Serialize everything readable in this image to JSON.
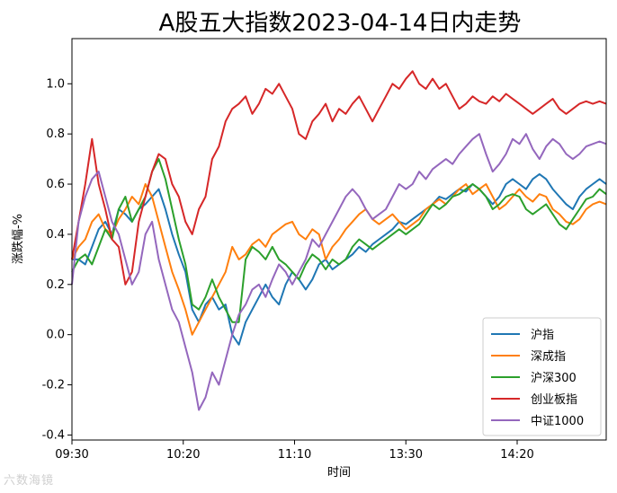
{
  "chart_data": {
    "type": "line",
    "title": "A股五大指数2023-04-14日内走势",
    "xlabel": "时间",
    "ylabel": "涨跌幅-%",
    "x_ticks": [
      "09:30",
      "10:20",
      "11:10",
      "13:30",
      "14:20"
    ],
    "x_tick_minutes": [
      0,
      50,
      100,
      150,
      200
    ],
    "x_range_minutes": [
      0,
      240
    ],
    "ylim": [
      -0.42,
      1.18
    ],
    "y_ticks": [
      1.0,
      0.8,
      0.6,
      0.4,
      0.2,
      0.0,
      -0.2,
      -0.4
    ],
    "y_tick_labels": [
      "1.0",
      "0.8",
      "0.6",
      "0.4",
      "0.2",
      "0.0",
      "-0.2",
      "-0.4"
    ],
    "legend_position": "bottom-right",
    "series": [
      {
        "name": "沪指",
        "color": "#1f77b4",
        "x": [
          0,
          3,
          6,
          9,
          12,
          15,
          18,
          21,
          24,
          27,
          30,
          33,
          36,
          39,
          42,
          45,
          48,
          51,
          54,
          57,
          60,
          63,
          66,
          69,
          72,
          75,
          78,
          81,
          84,
          87,
          90,
          93,
          96,
          99,
          102,
          105,
          108,
          111,
          114,
          117,
          120,
          123,
          126,
          129,
          132,
          135,
          138,
          141,
          144,
          147,
          150,
          153,
          156,
          159,
          162,
          165,
          168,
          171,
          174,
          177,
          180,
          183,
          186,
          189,
          192,
          195,
          198,
          201,
          204,
          207,
          210,
          213,
          216,
          219,
          222,
          225,
          228,
          231,
          234,
          237,
          240
        ],
        "y": [
          0.3,
          0.3,
          0.28,
          0.35,
          0.42,
          0.45,
          0.4,
          0.5,
          0.48,
          0.45,
          0.5,
          0.52,
          0.55,
          0.58,
          0.5,
          0.4,
          0.32,
          0.25,
          0.1,
          0.05,
          0.12,
          0.15,
          0.1,
          0.12,
          0.0,
          -0.04,
          0.05,
          0.1,
          0.15,
          0.2,
          0.15,
          0.12,
          0.2,
          0.25,
          0.22,
          0.18,
          0.22,
          0.28,
          0.3,
          0.26,
          0.28,
          0.3,
          0.32,
          0.35,
          0.33,
          0.36,
          0.38,
          0.4,
          0.42,
          0.45,
          0.44,
          0.46,
          0.48,
          0.5,
          0.52,
          0.55,
          0.54,
          0.56,
          0.58,
          0.57,
          0.6,
          0.58,
          0.55,
          0.52,
          0.55,
          0.6,
          0.62,
          0.6,
          0.58,
          0.62,
          0.64,
          0.62,
          0.58,
          0.55,
          0.52,
          0.5,
          0.55,
          0.58,
          0.6,
          0.62,
          0.6
        ]
      },
      {
        "name": "深成指",
        "color": "#ff7f0e",
        "x": [
          0,
          3,
          6,
          9,
          12,
          15,
          18,
          21,
          24,
          27,
          30,
          33,
          36,
          39,
          42,
          45,
          48,
          51,
          54,
          57,
          60,
          63,
          66,
          69,
          72,
          75,
          78,
          81,
          84,
          87,
          90,
          93,
          96,
          99,
          102,
          105,
          108,
          111,
          114,
          117,
          120,
          123,
          126,
          129,
          132,
          135,
          138,
          141,
          144,
          147,
          150,
          153,
          156,
          159,
          162,
          165,
          168,
          171,
          174,
          177,
          180,
          183,
          186,
          189,
          192,
          195,
          198,
          201,
          204,
          207,
          210,
          213,
          216,
          219,
          222,
          225,
          228,
          231,
          234,
          237,
          240
        ],
        "y": [
          0.3,
          0.35,
          0.38,
          0.45,
          0.48,
          0.42,
          0.4,
          0.46,
          0.5,
          0.55,
          0.52,
          0.6,
          0.55,
          0.45,
          0.35,
          0.25,
          0.18,
          0.1,
          0.0,
          0.05,
          0.1,
          0.15,
          0.2,
          0.25,
          0.35,
          0.3,
          0.32,
          0.36,
          0.38,
          0.35,
          0.4,
          0.42,
          0.44,
          0.45,
          0.4,
          0.38,
          0.42,
          0.4,
          0.3,
          0.35,
          0.38,
          0.42,
          0.45,
          0.48,
          0.5,
          0.46,
          0.44,
          0.46,
          0.48,
          0.45,
          0.42,
          0.44,
          0.46,
          0.5,
          0.52,
          0.54,
          0.52,
          0.55,
          0.58,
          0.6,
          0.56,
          0.58,
          0.6,
          0.55,
          0.5,
          0.52,
          0.55,
          0.58,
          0.55,
          0.53,
          0.56,
          0.55,
          0.5,
          0.48,
          0.45,
          0.44,
          0.46,
          0.5,
          0.52,
          0.53,
          0.52
        ]
      },
      {
        "name": "沪深300",
        "color": "#2ca02c",
        "x": [
          0,
          3,
          6,
          9,
          12,
          15,
          18,
          21,
          24,
          27,
          30,
          33,
          36,
          39,
          42,
          45,
          48,
          51,
          54,
          57,
          60,
          63,
          66,
          69,
          72,
          75,
          78,
          81,
          84,
          87,
          90,
          93,
          96,
          99,
          102,
          105,
          108,
          111,
          114,
          117,
          120,
          123,
          126,
          129,
          132,
          135,
          138,
          141,
          144,
          147,
          150,
          153,
          156,
          159,
          162,
          165,
          168,
          171,
          174,
          177,
          180,
          183,
          186,
          189,
          192,
          195,
          198,
          201,
          204,
          207,
          210,
          213,
          216,
          219,
          222,
          225,
          228,
          231,
          234,
          237,
          240
        ],
        "y": [
          0.25,
          0.3,
          0.32,
          0.28,
          0.35,
          0.42,
          0.38,
          0.5,
          0.55,
          0.45,
          0.5,
          0.55,
          0.65,
          0.7,
          0.62,
          0.5,
          0.38,
          0.28,
          0.12,
          0.1,
          0.15,
          0.22,
          0.15,
          0.1,
          0.05,
          0.05,
          0.3,
          0.35,
          0.33,
          0.3,
          0.35,
          0.3,
          0.28,
          0.25,
          0.22,
          0.28,
          0.32,
          0.3,
          0.26,
          0.3,
          0.28,
          0.3,
          0.35,
          0.38,
          0.36,
          0.34,
          0.36,
          0.38,
          0.4,
          0.42,
          0.4,
          0.42,
          0.44,
          0.48,
          0.52,
          0.5,
          0.52,
          0.55,
          0.56,
          0.58,
          0.6,
          0.58,
          0.55,
          0.5,
          0.52,
          0.55,
          0.56,
          0.55,
          0.5,
          0.48,
          0.5,
          0.52,
          0.48,
          0.44,
          0.42,
          0.46,
          0.5,
          0.54,
          0.55,
          0.58,
          0.56
        ]
      },
      {
        "name": "创业板指",
        "color": "#d62728",
        "x": [
          0,
          3,
          6,
          9,
          12,
          15,
          18,
          21,
          24,
          27,
          30,
          33,
          36,
          39,
          42,
          45,
          48,
          51,
          54,
          57,
          60,
          63,
          66,
          69,
          72,
          75,
          78,
          81,
          84,
          87,
          90,
          93,
          96,
          99,
          102,
          105,
          108,
          111,
          114,
          117,
          120,
          123,
          126,
          129,
          132,
          135,
          138,
          141,
          144,
          147,
          150,
          153,
          156,
          159,
          162,
          165,
          168,
          171,
          174,
          177,
          180,
          183,
          186,
          189,
          192,
          195,
          198,
          201,
          204,
          207,
          210,
          213,
          216,
          219,
          222,
          225,
          228,
          231,
          234,
          237,
          240
        ],
        "y": [
          0.3,
          0.45,
          0.6,
          0.78,
          0.6,
          0.5,
          0.38,
          0.35,
          0.2,
          0.25,
          0.45,
          0.55,
          0.65,
          0.72,
          0.7,
          0.6,
          0.55,
          0.45,
          0.4,
          0.5,
          0.55,
          0.7,
          0.75,
          0.85,
          0.9,
          0.92,
          0.95,
          0.88,
          0.92,
          0.98,
          0.96,
          1.0,
          0.95,
          0.9,
          0.8,
          0.78,
          0.85,
          0.88,
          0.92,
          0.85,
          0.9,
          0.88,
          0.92,
          0.95,
          0.9,
          0.85,
          0.9,
          0.95,
          1.0,
          0.98,
          1.02,
          1.05,
          1.0,
          0.98,
          1.02,
          0.98,
          1.0,
          0.95,
          0.9,
          0.92,
          0.95,
          0.93,
          0.92,
          0.95,
          0.93,
          0.96,
          0.94,
          0.92,
          0.9,
          0.88,
          0.9,
          0.92,
          0.94,
          0.9,
          0.88,
          0.9,
          0.92,
          0.93,
          0.92,
          0.93,
          0.92
        ]
      },
      {
        "name": "中证1000",
        "color": "#9467bd",
        "x": [
          0,
          3,
          6,
          9,
          12,
          15,
          18,
          21,
          24,
          27,
          30,
          33,
          36,
          39,
          42,
          45,
          48,
          51,
          54,
          57,
          60,
          63,
          66,
          69,
          72,
          75,
          78,
          81,
          84,
          87,
          90,
          93,
          96,
          99,
          102,
          105,
          108,
          111,
          114,
          117,
          120,
          123,
          126,
          129,
          132,
          135,
          138,
          141,
          144,
          147,
          150,
          153,
          156,
          159,
          162,
          165,
          168,
          171,
          174,
          177,
          180,
          183,
          186,
          189,
          192,
          195,
          198,
          201,
          204,
          207,
          210,
          213,
          216,
          219,
          222,
          225,
          228,
          231,
          234,
          237,
          240
        ],
        "y": [
          0.2,
          0.45,
          0.55,
          0.62,
          0.65,
          0.55,
          0.45,
          0.4,
          0.3,
          0.2,
          0.25,
          0.4,
          0.45,
          0.3,
          0.2,
          0.1,
          0.05,
          -0.05,
          -0.15,
          -0.3,
          -0.25,
          -0.15,
          -0.2,
          -0.1,
          0.0,
          0.08,
          0.12,
          0.18,
          0.2,
          0.15,
          0.22,
          0.28,
          0.25,
          0.2,
          0.25,
          0.3,
          0.38,
          0.35,
          0.4,
          0.45,
          0.5,
          0.55,
          0.58,
          0.55,
          0.5,
          0.46,
          0.48,
          0.5,
          0.55,
          0.6,
          0.58,
          0.6,
          0.65,
          0.62,
          0.66,
          0.68,
          0.7,
          0.68,
          0.72,
          0.75,
          0.78,
          0.8,
          0.72,
          0.65,
          0.68,
          0.72,
          0.78,
          0.76,
          0.8,
          0.74,
          0.7,
          0.75,
          0.78,
          0.76,
          0.72,
          0.7,
          0.72,
          0.75,
          0.76,
          0.77,
          0.76
        ]
      }
    ]
  },
  "watermark": "六数海镜"
}
